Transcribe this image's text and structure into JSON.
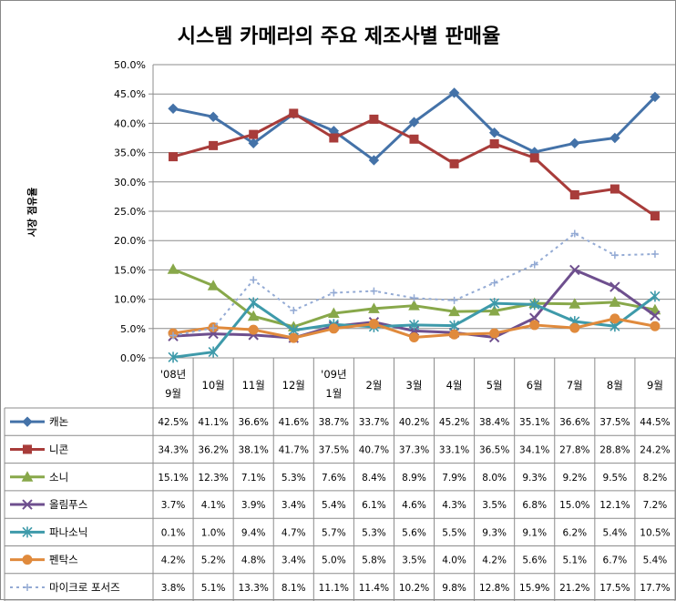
{
  "chart_data": {
    "type": "line",
    "title": "시스템 카메라의 주요 제조사별 판매율",
    "ylabel": "시장 점유율",
    "xlabel": "",
    "ylim": [
      0,
      50
    ],
    "yticks": [
      "0.0%",
      "5.0%",
      "10.0%",
      "15.0%",
      "20.0%",
      "25.0%",
      "30.0%",
      "35.0%",
      "40.0%",
      "45.0%",
      "50.0%"
    ],
    "grid": "horizontal",
    "legend": "data-table-below",
    "categories": [
      [
        "'08년",
        "9월"
      ],
      [
        "10월"
      ],
      [
        "11월"
      ],
      [
        "12월"
      ],
      [
        "'09년",
        "1월"
      ],
      [
        "2월"
      ],
      [
        "3월"
      ],
      [
        "4월"
      ],
      [
        "5월"
      ],
      [
        "6월"
      ],
      [
        "7월"
      ],
      [
        "8월"
      ],
      [
        "9월"
      ]
    ],
    "series": [
      {
        "name": "캐논",
        "color": "#4472a8",
        "marker": "diamond",
        "dash": false,
        "values": [
          42.5,
          41.1,
          36.6,
          41.6,
          38.7,
          33.7,
          40.2,
          45.2,
          38.4,
          35.1,
          36.6,
          37.5,
          44.5
        ],
        "labels": [
          "42.5%",
          "41.1%",
          "36.6%",
          "41.6%",
          "38.7%",
          "33.7%",
          "40.2%",
          "45.2%",
          "38.4%",
          "35.1%",
          "36.6%",
          "37.5%",
          "44.5%"
        ]
      },
      {
        "name": "니콘",
        "color": "#a83c3a",
        "marker": "square",
        "dash": false,
        "values": [
          34.3,
          36.2,
          38.1,
          41.7,
          37.5,
          40.7,
          37.3,
          33.1,
          36.5,
          34.1,
          27.8,
          28.8,
          24.2
        ],
        "labels": [
          "34.3%",
          "36.2%",
          "38.1%",
          "41.7%",
          "37.5%",
          "40.7%",
          "37.3%",
          "33.1%",
          "36.5%",
          "34.1%",
          "27.8%",
          "28.8%",
          "24.2%"
        ]
      },
      {
        "name": "소니",
        "color": "#88a84a",
        "marker": "triangle",
        "dash": false,
        "values": [
          15.1,
          12.3,
          7.1,
          5.3,
          7.6,
          8.4,
          8.9,
          7.9,
          8.0,
          9.3,
          9.2,
          9.5,
          8.2
        ],
        "labels": [
          "15.1%",
          "12.3%",
          "7.1%",
          "5.3%",
          "7.6%",
          "8.4%",
          "8.9%",
          "7.9%",
          "8.0%",
          "9.3%",
          "9.2%",
          "9.5%",
          "8.2%"
        ]
      },
      {
        "name": "올림푸스",
        "color": "#6e4f8e",
        "marker": "x",
        "dash": false,
        "values": [
          3.7,
          4.1,
          3.9,
          3.4,
          5.4,
          6.1,
          4.6,
          4.3,
          3.5,
          6.8,
          15.0,
          12.1,
          7.2
        ],
        "labels": [
          "3.7%",
          "4.1%",
          "3.9%",
          "3.4%",
          "5.4%",
          "6.1%",
          "4.6%",
          "4.3%",
          "3.5%",
          "6.8%",
          "15.0%",
          "12.1%",
          "7.2%"
        ]
      },
      {
        "name": "파나소닉",
        "color": "#3e9aaa",
        "marker": "star",
        "dash": false,
        "values": [
          0.1,
          1.0,
          9.4,
          4.7,
          5.7,
          5.3,
          5.6,
          5.5,
          9.3,
          9.1,
          6.2,
          5.4,
          10.5
        ],
        "labels": [
          "0.1%",
          "1.0%",
          "9.4%",
          "4.7%",
          "5.7%",
          "5.3%",
          "5.6%",
          "5.5%",
          "9.3%",
          "9.1%",
          "6.2%",
          "5.4%",
          "10.5%"
        ]
      },
      {
        "name": "펜탁스",
        "color": "#e08a3c",
        "marker": "circle",
        "dash": false,
        "values": [
          4.2,
          5.2,
          4.8,
          3.4,
          5.0,
          5.8,
          3.5,
          4.0,
          4.2,
          5.6,
          5.1,
          6.7,
          5.4
        ],
        "labels": [
          "4.2%",
          "5.2%",
          "4.8%",
          "3.4%",
          "5.0%",
          "5.8%",
          "3.5%",
          "4.0%",
          "4.2%",
          "5.6%",
          "5.1%",
          "6.7%",
          "5.4%"
        ]
      },
      {
        "name": "마이크로 포서즈",
        "color": "#93aad4",
        "marker": "plus",
        "dash": true,
        "values": [
          3.8,
          5.1,
          13.3,
          8.1,
          11.1,
          11.4,
          10.2,
          9.8,
          12.8,
          15.9,
          21.2,
          17.5,
          17.7
        ],
        "labels": [
          "3.8%",
          "5.1%",
          "13.3%",
          "8.1%",
          "11.1%",
          "11.4%",
          "10.2%",
          "9.8%",
          "12.8%",
          "15.9%",
          "21.2%",
          "17.5%",
          "17.7%"
        ]
      }
    ]
  }
}
